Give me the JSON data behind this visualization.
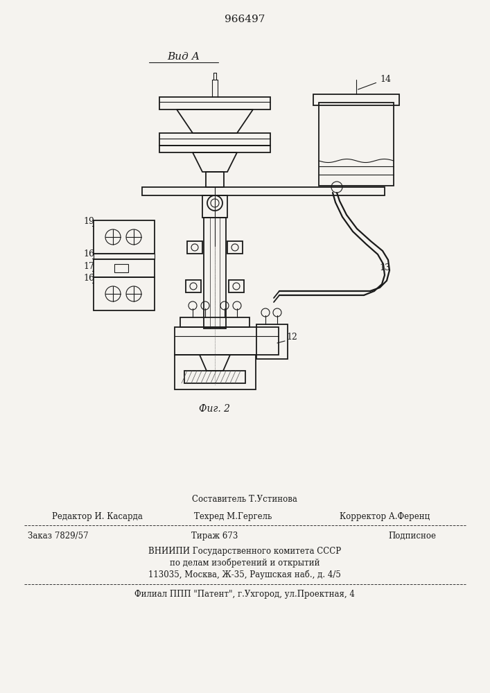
{
  "patent_number": "966497",
  "view_label": "Вид А",
  "fig_label": "Фиг. 2",
  "bg_color": "#f5f3ef",
  "line_color": "#1a1a1a",
  "footer": {
    "line1_center": "Составитель Т.Устинова",
    "line2_left": "Редактор И. Касарда",
    "line2_center": "Техред М.Гергель",
    "line2_right": "Корректор А.Ференц",
    "line3_left": "Заказ 7829/57",
    "line3_center": "Тираж 673",
    "line3_right": "Подписное",
    "line4": "ВНИИПИ Государственного комитета СССР",
    "line5": "по делам изобретений и открытий",
    "line6": "113035, Москва, Ж-35, Раушская наб., д. 4/5",
    "line7": "Филиал ППП \"Патент\", г.Ухгород, ул.Проектная, 4"
  }
}
